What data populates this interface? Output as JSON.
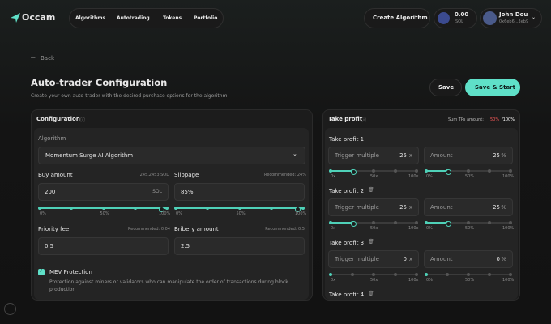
{
  "nav": {
    "logo": "Occam",
    "links": [
      "Algorithms",
      "Autotrading",
      "Tokens",
      "Portfolio"
    ],
    "create": "Create Algorithm",
    "balance": "0.00",
    "balance_unit": "SOL",
    "user_name": "John Dou",
    "user_address": "0x6eb6...3eb9"
  },
  "page": {
    "back": "Back",
    "title": "Auto-trader Configuration",
    "subtitle": "Create your own auto-trader with the desired purchase options for the algorithm",
    "save": "Save",
    "save_start": "Save & Start"
  },
  "configuration": {
    "title": "Configuration",
    "algorithm_label": "Algorithm",
    "algorithm_value": "Momentum Surge AI Algorithm",
    "fields": [
      {
        "label": "Buy amount",
        "hint": "245.2453 SOL",
        "value": "200",
        "unit": "SOL",
        "slider": [
          "0%",
          "50%",
          "100%"
        ]
      },
      {
        "label": "Slippage",
        "hint": "Recommended: 24%",
        "value": "85%",
        "slider": [
          "0%",
          "50%",
          "100%"
        ]
      },
      {
        "label": "Priority fee",
        "hint": "Recommended: 0.04",
        "value": "0.5"
      },
      {
        "label": "Bribery amount",
        "hint": "Recommended: 0.5",
        "value": "2.5"
      }
    ],
    "mev": {
      "label": "MEV Protection",
      "description": "Protection against miners or validators who can manipulate the order of transactions during block production"
    }
  },
  "take_profit": {
    "title": "Take profit",
    "sum_label": "Sum TPs amount:",
    "sum_value": "50%",
    "sum_total": "/100%",
    "items": [
      {
        "label": "Take profit 1",
        "trigger_label": "Trigger multiple",
        "trigger_value": "25",
        "trigger_unit": "x",
        "trigger_slider": [
          "0x",
          "50x",
          "100x"
        ],
        "amount_label": "Amount",
        "amount_value": "25",
        "amount_unit": "%",
        "amount_slider": [
          "0%",
          "50%",
          "100%"
        ]
      },
      {
        "label": "Take profit 2",
        "trigger_label": "Trigger multiple",
        "trigger_value": "25",
        "trigger_unit": "x",
        "trigger_slider": [
          "0x",
          "50x",
          "100x"
        ],
        "amount_label": "Amount",
        "amount_value": "25",
        "amount_unit": "%",
        "amount_slider": [
          "0%",
          "50%",
          "100%"
        ]
      },
      {
        "label": "Take profit 3",
        "trigger_label": "Trigger multiple",
        "trigger_value": "0",
        "trigger_unit": "x",
        "trigger_slider": [
          "0x",
          "50x",
          "100x"
        ],
        "amount_label": "Amount",
        "amount_value": "0",
        "amount_unit": "%",
        "amount_slider": [
          "0%",
          "50%",
          "100%"
        ]
      }
    ],
    "more": "Take profit 4"
  }
}
